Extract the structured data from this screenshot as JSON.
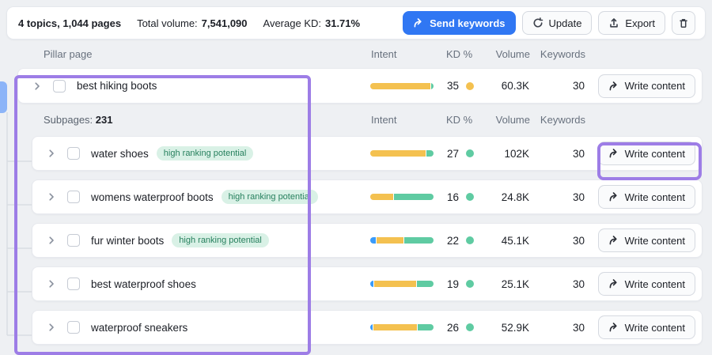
{
  "toolbar": {
    "summary": "4 topics, 1,044 pages",
    "total_volume_label": "Total volume:",
    "total_volume_value": "7,541,090",
    "avg_kd_label": "Average KD:",
    "avg_kd_value": "31.71%",
    "send_keywords_label": "Send keywords",
    "update_label": "Update",
    "export_label": "Export"
  },
  "table": {
    "pillar_header": {
      "name": "Pillar page",
      "intent": "Intent",
      "kd": "KD %",
      "volume": "Volume",
      "keywords": "Keywords"
    },
    "subpages_header": {
      "label": "Subpages:",
      "count": "231",
      "intent": "Intent",
      "kd": "KD %",
      "volume": "Volume",
      "keywords": "Keywords"
    },
    "badge_label": "high ranking potential",
    "write_content_label": "Write content",
    "pillar_row": {
      "name": "best hiking boots",
      "intent_segments": [
        {
          "color": "#f4c150",
          "pct": 96
        },
        {
          "color": "#5fcba2",
          "pct": 4
        }
      ],
      "kd": "35",
      "kd_dot_color": "#f4c150",
      "volume": "60.3K",
      "keywords": "30"
    },
    "subpage_rows": [
      {
        "name": "water shoes",
        "has_badge": true,
        "intent_segments": [
          {
            "color": "#f4c150",
            "pct": 88
          },
          {
            "color": "#5fcba2",
            "pct": 12
          }
        ],
        "kd": "27",
        "kd_dot_color": "#5fcba2",
        "volume": "102K",
        "keywords": "30"
      },
      {
        "name": "womens waterproof boots",
        "has_badge": true,
        "intent_segments": [
          {
            "color": "#f4c150",
            "pct": 37
          },
          {
            "color": "#5fcba2",
            "pct": 63
          }
        ],
        "kd": "16",
        "kd_dot_color": "#5fcba2",
        "volume": "24.8K",
        "keywords": "30"
      },
      {
        "name": "fur winter boots",
        "has_badge": true,
        "intent_segments": [
          {
            "color": "#3a9bfa",
            "pct": 9
          },
          {
            "color": "#f4c150",
            "pct": 43
          },
          {
            "color": "#5fcba2",
            "pct": 48
          }
        ],
        "kd": "22",
        "kd_dot_color": "#5fcba2",
        "volume": "45.1K",
        "keywords": "30"
      },
      {
        "name": "best waterproof shoes",
        "has_badge": false,
        "intent_segments": [
          {
            "color": "#3a9bfa",
            "pct": 5
          },
          {
            "color": "#f4c150",
            "pct": 68
          },
          {
            "color": "#5fcba2",
            "pct": 27
          }
        ],
        "kd": "19",
        "kd_dot_color": "#5fcba2",
        "volume": "25.1K",
        "keywords": "30"
      },
      {
        "name": "waterproof sneakers",
        "has_badge": false,
        "intent_segments": [
          {
            "color": "#3a9bfa",
            "pct": 4
          },
          {
            "color": "#f4c150",
            "pct": 70
          },
          {
            "color": "#5fcba2",
            "pct": 26
          }
        ],
        "kd": "26",
        "kd_dot_color": "#5fcba2",
        "volume": "52.9K",
        "keywords": "30"
      }
    ]
  },
  "colors": {
    "intent_commercial_yellow": "#f4c150",
    "intent_informational_green": "#5fcba2",
    "intent_navigational_blue": "#3a9bfa",
    "accent_blue": "#3077f3",
    "annotation_purple": "#9d7de6",
    "badge_green_bg": "#d9f1e6",
    "badge_green_text": "#27805e"
  }
}
